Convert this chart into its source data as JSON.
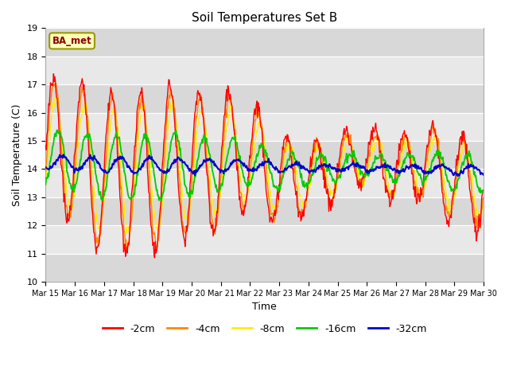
{
  "title": "Soil Temperatures Set B",
  "xlabel": "Time",
  "ylabel": "Soil Temperature (C)",
  "ylim": [
    10.0,
    19.0
  ],
  "yticks": [
    10.0,
    11.0,
    12.0,
    13.0,
    14.0,
    15.0,
    16.0,
    17.0,
    18.0,
    19.0
  ],
  "colors": {
    "-2cm": "#ff0000",
    "-4cm": "#ff8800",
    "-8cm": "#ffee00",
    "-16cm": "#00cc00",
    "-32cm": "#0000cc"
  },
  "legend_label": "BA_met",
  "legend_box_color": "#ffffbb",
  "legend_box_edge": "#999900",
  "plot_bg": "#d8d8d8",
  "stripe_color": "#e8e8e8",
  "x_labels": [
    "Mar 15",
    "Mar 16",
    "Mar 17",
    "Mar 18",
    "Mar 19",
    "Mar 20",
    "Mar 21",
    "Mar 22",
    "Mar 23",
    "Mar 24",
    "Mar 25",
    "Mar 26",
    "Mar 27",
    "Mar 28",
    "Mar 29",
    "Mar 30"
  ]
}
